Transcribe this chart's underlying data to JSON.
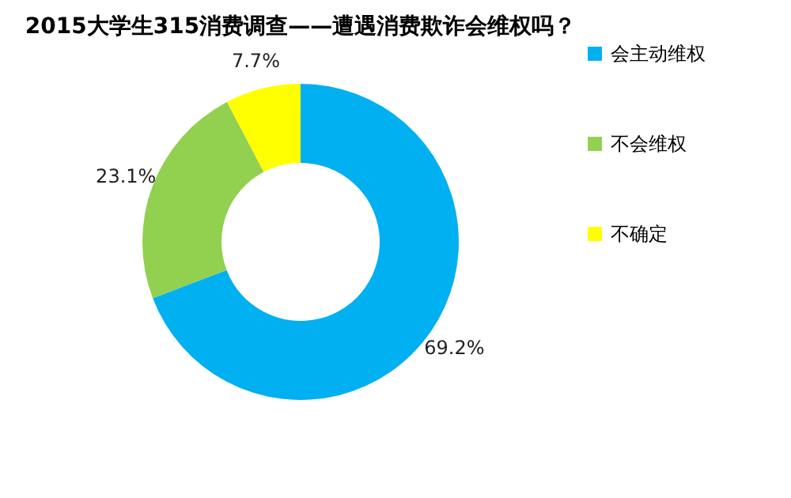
{
  "chart_data": {
    "type": "donut",
    "title": "2015大学生315消费调查——遭遇消费欺诈会维权吗？",
    "categories": [
      "会主动维权",
      "不会维权",
      "不确定"
    ],
    "values": [
      69.2,
      23.1,
      7.7
    ],
    "value_labels": [
      "69.2%",
      "23.1%",
      "7.7%"
    ],
    "colors": [
      "#00b0f0",
      "#92d050",
      "#ffff00"
    ],
    "legend": "right"
  }
}
